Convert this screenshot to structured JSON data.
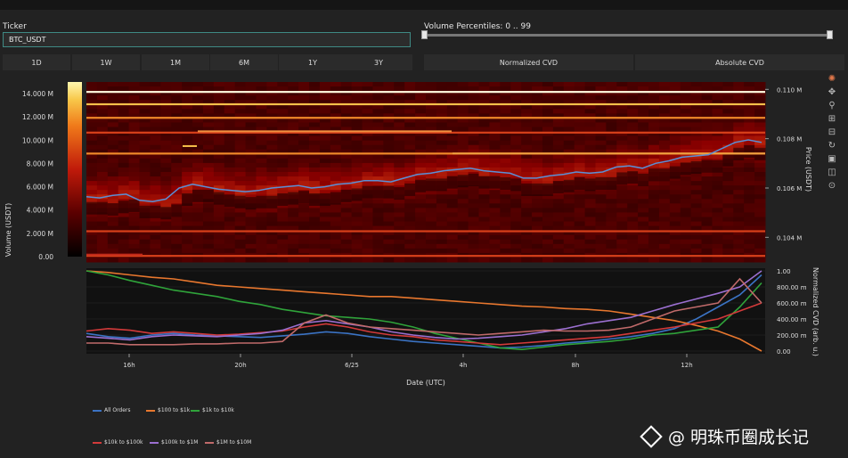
{
  "controls": {
    "ticker_label": "Ticker",
    "ticker_value": "BTC_USDT",
    "percentile_label": "Volume Percentiles: 0 .. 99",
    "percentile_low": 0,
    "percentile_high": 99,
    "ranges": [
      {
        "label": "1D",
        "active": true
      },
      {
        "label": "1W",
        "active": false
      },
      {
        "label": "1M",
        "active": false
      },
      {
        "label": "6M",
        "active": false
      },
      {
        "label": "1Y",
        "active": false
      },
      {
        "label": "3Y",
        "active": false
      }
    ],
    "cvd_modes": [
      {
        "label": "Normalized CVD",
        "active": true
      },
      {
        "label": "Absolute CVD",
        "active": false
      }
    ]
  },
  "modebar_icons": [
    "plotly-logo-icon",
    "pan-icon",
    "zoom-icon",
    "zoom-in-icon",
    "zoom-out-icon",
    "reset-icon",
    "save-icon",
    "autoscale-icon",
    "spike-icon"
  ],
  "colors": {
    "accent": "#3f8a84",
    "price_line": "#5b8fd6"
  },
  "chart_data": [
    {
      "type": "heatmap",
      "colorbar_label": "Volume (USDT)",
      "colorbar_ticks": [
        "14.000 M",
        "12.000 M",
        "10.000 M",
        "8.000 M",
        "6.000 M",
        "4.000 M",
        "2.000 M",
        "0.00"
      ],
      "colorbar_range": [
        0,
        15000000
      ],
      "y_axis_label": "Price (USDT)",
      "y_ticks": [
        "0.110 M",
        "0.108 M",
        "0.106 M",
        "0.104 M"
      ],
      "y_range": [
        103000,
        110300
      ],
      "price_series": {
        "name": "price",
        "color": "#5b8fd6",
        "values": [
          105650,
          105600,
          105700,
          105750,
          105500,
          105450,
          105550,
          106000,
          106150,
          106050,
          105950,
          105900,
          105850,
          105900,
          106000,
          106050,
          106100,
          106000,
          106050,
          106150,
          106200,
          106300,
          106300,
          106250,
          106400,
          106550,
          106600,
          106700,
          106750,
          106800,
          106700,
          106650,
          106600,
          106400,
          106400,
          106500,
          106550,
          106650,
          106600,
          106650,
          106850,
          106900,
          106800,
          107000,
          107100,
          107250,
          107300,
          107350,
          107600,
          107850,
          107950,
          107850
        ]
      },
      "liquidity_levels": [
        {
          "price": 109900,
          "intensity": 1.0
        },
        {
          "price": 109400,
          "intensity": 0.75
        },
        {
          "price": 108850,
          "intensity": 0.6
        },
        {
          "price": 108250,
          "intensity": 0.45
        },
        {
          "price": 107400,
          "intensity": 0.55
        },
        {
          "price": 104250,
          "intensity": 0.4
        },
        {
          "price": 103250,
          "intensity": 0.35
        }
      ]
    },
    {
      "type": "line",
      "x_label": "Date (UTC)",
      "x_ticks": [
        "16h",
        "20h",
        "6/25",
        "4h",
        "8h",
        "12h"
      ],
      "y_label": "Normalized CVD (arb. u.)",
      "y_ticks": [
        "1.00",
        "800.00 m",
        "600.00 m",
        "400.00 m",
        "200.00 m",
        "0.00"
      ],
      "y_range": [
        0,
        1
      ],
      "series": [
        {
          "name": "All Orders",
          "color": "#3b73c4",
          "values": [
            0.22,
            0.18,
            0.16,
            0.2,
            0.22,
            0.2,
            0.19,
            0.18,
            0.17,
            0.19,
            0.21,
            0.24,
            0.22,
            0.18,
            0.15,
            0.12,
            0.1,
            0.08,
            0.06,
            0.04,
            0.05,
            0.07,
            0.1,
            0.12,
            0.15,
            0.18,
            0.22,
            0.28,
            0.4,
            0.55,
            0.7,
            0.95
          ]
        },
        {
          "name": "$100 to $1k",
          "color": "#e8772e",
          "values": [
            1.0,
            0.98,
            0.95,
            0.92,
            0.9,
            0.86,
            0.82,
            0.8,
            0.78,
            0.76,
            0.74,
            0.72,
            0.7,
            0.68,
            0.68,
            0.66,
            0.64,
            0.62,
            0.6,
            0.58,
            0.56,
            0.55,
            0.53,
            0.52,
            0.5,
            0.46,
            0.42,
            0.38,
            0.32,
            0.25,
            0.15,
            0.0
          ]
        },
        {
          "name": "$1k to $10k",
          "color": "#2fa33a",
          "values": [
            1.0,
            0.95,
            0.88,
            0.82,
            0.76,
            0.72,
            0.68,
            0.62,
            0.58,
            0.52,
            0.48,
            0.44,
            0.42,
            0.4,
            0.36,
            0.3,
            0.22,
            0.16,
            0.1,
            0.04,
            0.02,
            0.05,
            0.08,
            0.1,
            0.12,
            0.15,
            0.2,
            0.22,
            0.26,
            0.3,
            0.55,
            0.85
          ]
        },
        {
          "name": "$10k to $100k",
          "color": "#d33a3a",
          "values": [
            0.25,
            0.28,
            0.26,
            0.22,
            0.24,
            0.22,
            0.2,
            0.21,
            0.23,
            0.25,
            0.3,
            0.34,
            0.3,
            0.24,
            0.2,
            0.18,
            0.14,
            0.12,
            0.1,
            0.08,
            0.1,
            0.12,
            0.14,
            0.16,
            0.18,
            0.22,
            0.26,
            0.3,
            0.35,
            0.4,
            0.5,
            0.6
          ]
        },
        {
          "name": "$100k to $1M",
          "color": "#9b6fd0",
          "values": [
            0.18,
            0.16,
            0.14,
            0.18,
            0.2,
            0.19,
            0.18,
            0.2,
            0.22,
            0.26,
            0.35,
            0.38,
            0.34,
            0.3,
            0.24,
            0.2,
            0.17,
            0.15,
            0.16,
            0.18,
            0.2,
            0.24,
            0.28,
            0.34,
            0.38,
            0.42,
            0.5,
            0.58,
            0.65,
            0.72,
            0.8,
            1.0
          ]
        },
        {
          "name": "$1M to $10M",
          "color": "#c06a6a",
          "values": [
            0.1,
            0.1,
            0.08,
            0.08,
            0.08,
            0.09,
            0.09,
            0.1,
            0.1,
            0.12,
            0.35,
            0.45,
            0.35,
            0.3,
            0.28,
            0.26,
            0.24,
            0.22,
            0.2,
            0.22,
            0.24,
            0.26,
            0.25,
            0.25,
            0.26,
            0.3,
            0.4,
            0.5,
            0.55,
            0.6,
            0.9,
            0.6
          ]
        }
      ]
    }
  ],
  "watermark": "@ 明珠币圈成长记"
}
